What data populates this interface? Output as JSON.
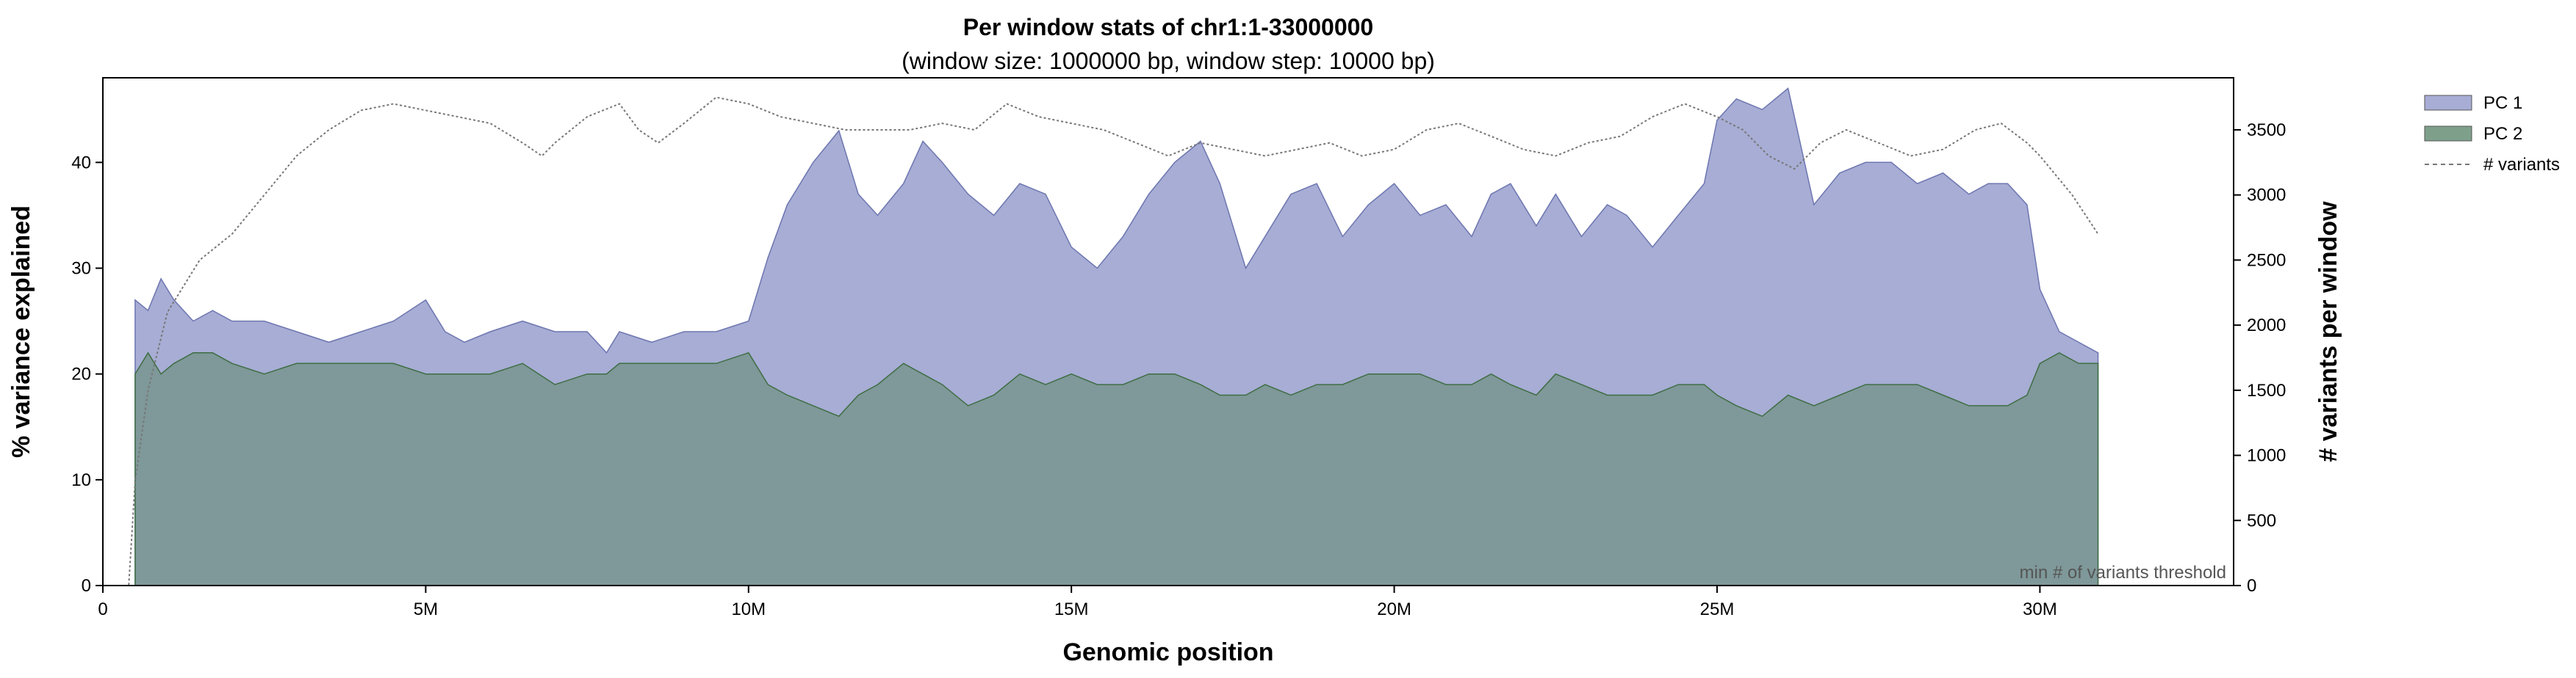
{
  "chart_data": {
    "type": "area",
    "title": "Per window stats of chr1:1-33000000",
    "subtitle": "(window size: 1000000 bp, window step: 10000 bp)",
    "xlabel": "Genomic position",
    "ylabel_left": "% variance explained",
    "ylabel_right": "# variants per window",
    "xlim": [
      0,
      33000000
    ],
    "ylim_left": [
      0,
      48
    ],
    "ylim_right": [
      0,
      3900
    ],
    "x_ticks": [
      0,
      5000000,
      10000000,
      15000000,
      20000000,
      25000000,
      30000000
    ],
    "x_tick_labels": [
      "0",
      "5M",
      "10M",
      "15M",
      "20M",
      "25M",
      "30M"
    ],
    "y_ticks_left": [
      0,
      10,
      20,
      30,
      40
    ],
    "y_ticks_right": [
      0,
      500,
      1000,
      1500,
      2000,
      2500,
      3000,
      3500
    ],
    "annotation": "min # of variants threshold",
    "colors": {
      "pc1": "#a7add4",
      "pc1_line": "#6d76b0",
      "pc2": "#7c9796",
      "pc2_line": "#3e6e43",
      "variants": "#777777"
    },
    "grid": false,
    "legend_position": "right-outside",
    "legend": [
      {
        "label": "PC 1",
        "kind": "area",
        "color": "#a7add4"
      },
      {
        "label": "PC 2",
        "kind": "area",
        "color": "#7ea08a"
      },
      {
        "label": "# variants",
        "kind": "dashed-line",
        "color": "#777777"
      }
    ],
    "series": [
      {
        "name": "PC 1",
        "x": [
          500000,
          700000,
          900000,
          1100000,
          1400000,
          1700000,
          2000000,
          2500000,
          3000000,
          3500000,
          4000000,
          4500000,
          5000000,
          5300000,
          5600000,
          6000000,
          6500000,
          7000000,
          7500000,
          7800000,
          8000000,
          8500000,
          9000000,
          9500000,
          10000000,
          10300000,
          10600000,
          11000000,
          11400000,
          11700000,
          12000000,
          12400000,
          12700000,
          13000000,
          13400000,
          13800000,
          14200000,
          14600000,
          15000000,
          15400000,
          15800000,
          16200000,
          16600000,
          17000000,
          17300000,
          17700000,
          18000000,
          18400000,
          18800000,
          19200000,
          19600000,
          20000000,
          20400000,
          20800000,
          21200000,
          21500000,
          21800000,
          22200000,
          22500000,
          22900000,
          23300000,
          23600000,
          24000000,
          24400000,
          24800000,
          25000000,
          25300000,
          25700000,
          26100000,
          26500000,
          26900000,
          27300000,
          27700000,
          28100000,
          28500000,
          28900000,
          29200000,
          29500000,
          29800000,
          30000000,
          30300000,
          30600000,
          30900000
        ],
        "values": [
          27,
          26,
          29,
          27,
          25,
          26,
          25,
          25,
          24,
          23,
          24,
          25,
          27,
          24,
          23,
          24,
          25,
          24,
          24,
          22,
          24,
          23,
          24,
          24,
          25,
          31,
          36,
          40,
          43,
          37,
          35,
          38,
          42,
          40,
          37,
          35,
          38,
          37,
          32,
          30,
          33,
          37,
          40,
          42,
          38,
          30,
          33,
          37,
          38,
          33,
          36,
          38,
          35,
          36,
          33,
          37,
          38,
          34,
          37,
          33,
          36,
          35,
          32,
          35,
          38,
          44,
          46,
          45,
          47,
          36,
          39,
          40,
          40,
          38,
          39,
          37,
          38,
          38,
          36,
          28,
          24,
          23,
          22
        ]
      },
      {
        "name": "PC 2",
        "x": [
          500000,
          700000,
          900000,
          1100000,
          1400000,
          1700000,
          2000000,
          2500000,
          3000000,
          3500000,
          4000000,
          4500000,
          5000000,
          5300000,
          5600000,
          6000000,
          6500000,
          7000000,
          7500000,
          7800000,
          8000000,
          8500000,
          9000000,
          9500000,
          10000000,
          10300000,
          10600000,
          11000000,
          11400000,
          11700000,
          12000000,
          12400000,
          12700000,
          13000000,
          13400000,
          13800000,
          14200000,
          14600000,
          15000000,
          15400000,
          15800000,
          16200000,
          16600000,
          17000000,
          17300000,
          17700000,
          18000000,
          18400000,
          18800000,
          19200000,
          19600000,
          20000000,
          20400000,
          20800000,
          21200000,
          21500000,
          21800000,
          22200000,
          22500000,
          22900000,
          23300000,
          23600000,
          24000000,
          24400000,
          24800000,
          25000000,
          25300000,
          25700000,
          26100000,
          26500000,
          26900000,
          27300000,
          27700000,
          28100000,
          28500000,
          28900000,
          29200000,
          29500000,
          29800000,
          30000000,
          30300000,
          30600000,
          30900000
        ],
        "values": [
          20,
          22,
          20,
          21,
          22,
          22,
          21,
          20,
          21,
          21,
          21,
          21,
          20,
          20,
          20,
          20,
          21,
          19,
          20,
          20,
          21,
          21,
          21,
          21,
          22,
          19,
          18,
          17,
          16,
          18,
          19,
          21,
          20,
          19,
          17,
          18,
          20,
          19,
          20,
          19,
          19,
          20,
          20,
          19,
          18,
          18,
          19,
          18,
          19,
          19,
          20,
          20,
          20,
          19,
          19,
          20,
          19,
          18,
          20,
          19,
          18,
          18,
          18,
          19,
          19,
          18,
          17,
          16,
          18,
          17,
          18,
          19,
          19,
          19,
          18,
          17,
          17,
          17,
          18,
          21,
          22,
          21,
          21
        ]
      },
      {
        "name": "# variants",
        "x": [
          0,
          400000,
          500000,
          700000,
          1000000,
          1500000,
          2000000,
          2500000,
          3000000,
          3500000,
          4000000,
          4500000,
          5000000,
          5500000,
          6000000,
          6500000,
          6800000,
          7000000,
          7500000,
          8000000,
          8300000,
          8600000,
          9000000,
          9500000,
          10000000,
          10500000,
          11000000,
          11500000,
          12000000,
          12500000,
          13000000,
          13500000,
          14000000,
          14500000,
          15000000,
          15500000,
          16000000,
          16500000,
          17000000,
          17500000,
          18000000,
          18500000,
          19000000,
          19500000,
          20000000,
          20500000,
          21000000,
          21500000,
          22000000,
          22500000,
          23000000,
          23500000,
          24000000,
          24500000,
          25000000,
          25400000,
          25800000,
          26200000,
          26600000,
          27000000,
          27500000,
          28000000,
          28500000,
          29000000,
          29400000,
          29800000,
          30000000,
          30500000,
          30900000
        ],
        "values": [
          0,
          0,
          800,
          1500,
          2100,
          2500,
          2700,
          3000,
          3300,
          3500,
          3650,
          3700,
          3650,
          3600,
          3550,
          3400,
          3300,
          3400,
          3600,
          3700,
          3500,
          3400,
          3550,
          3750,
          3700,
          3600,
          3550,
          3500,
          3500,
          3500,
          3550,
          3500,
          3700,
          3600,
          3550,
          3500,
          3400,
          3300,
          3400,
          3350,
          3300,
          3350,
          3400,
          3300,
          3350,
          3500,
          3550,
          3450,
          3350,
          3300,
          3400,
          3450,
          3600,
          3700,
          3600,
          3500,
          3300,
          3200,
          3400,
          3500,
          3400,
          3300,
          3350,
          3500,
          3550,
          3400,
          3300,
          3000,
          2700
        ]
      }
    ]
  }
}
